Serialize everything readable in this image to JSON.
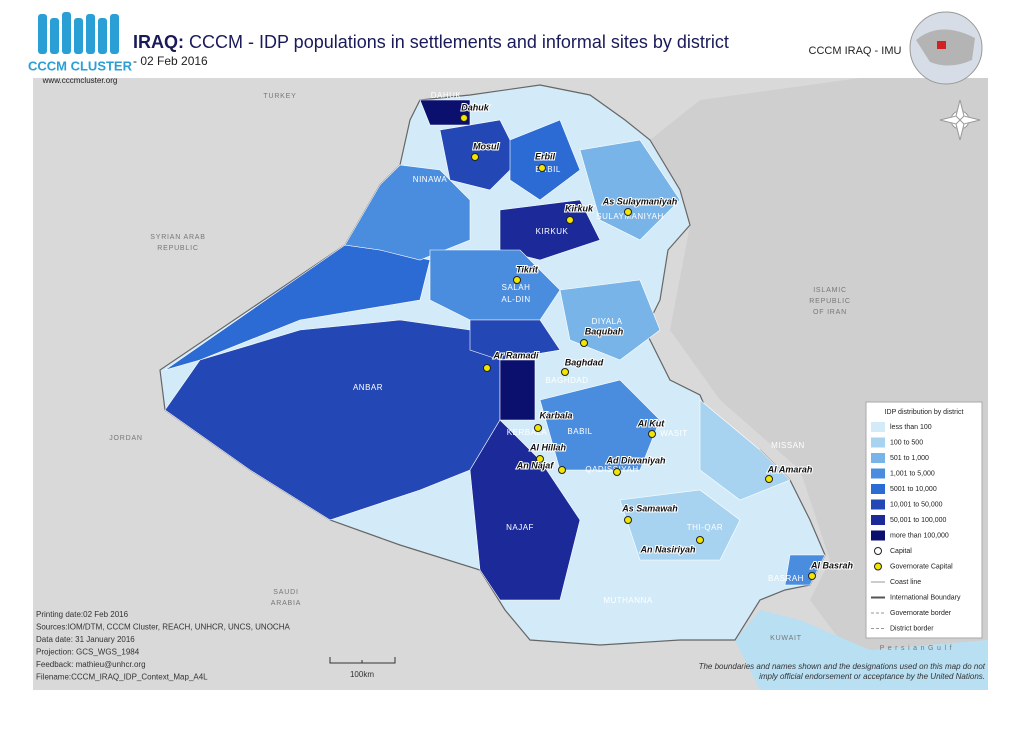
{
  "header": {
    "title_bold": "IRAQ:",
    "title": "CCCM - IDP populations in settlements and informal sites by district",
    "date": "- 02 Feb 2016",
    "org": "CCCM IRAQ - IMU",
    "logo_text": "CCCM CLUSTER",
    "logo_url": "www.cccmcluster.org"
  },
  "map": {
    "countries": [
      [
        "TURKEY"
      ],
      [
        "SYRIAN ARAB",
        "REPUBLIC"
      ],
      [
        "ISLAMIC",
        "REPUBLIC",
        "OF IRAN"
      ],
      [
        "JORDAN"
      ],
      [
        "SAUDI",
        "ARABIA"
      ],
      [
        "KUWAIT"
      ],
      [
        "P e r s i a n   G u l f"
      ]
    ],
    "governorates": [
      "DAHUK",
      "NINAWA",
      "ERBIL",
      "SULAYMANIYAH",
      "KIRKUK",
      "SALAH",
      "AL-DIN",
      "DIYALA",
      "BAGHDAD",
      "ANBAR",
      "KERBALA",
      "BABIL",
      "WASIT",
      "QADISSIYAH",
      "MISSAN",
      "NAJAF",
      "THI-QAR",
      "MUTHANNA",
      "BASRAH"
    ],
    "cities": [
      "Dahuk",
      "Mosul",
      "Erbil",
      "As Sulaymaniyah",
      "Kirkuk",
      "Tikrit",
      "Baqubah",
      "Ar Ramadi",
      "Baghdad",
      "Karbala",
      "Al Hillah",
      "An Najaf",
      "Ad Diwaniyah",
      "Al Kut",
      "Al Amarah",
      "As Samawah",
      "An Nasiriyah",
      "Al Basrah"
    ]
  },
  "legend": {
    "title": "IDP distribution by district",
    "classes": [
      {
        "label": "less than 100",
        "color": "#d3ebf8"
      },
      {
        "label": "100 to 500",
        "color": "#a8d3f0"
      },
      {
        "label": "501 to 1,000",
        "color": "#78b4e8"
      },
      {
        "label": "1,001 to 5,000",
        "color": "#4a8ddf"
      },
      {
        "label": "5001 to 10,000",
        "color": "#2d6bd4"
      },
      {
        "label": "10,001 to 50,000",
        "color": "#2447b6"
      },
      {
        "label": "50,001 to 100,000",
        "color": "#1b2a98"
      },
      {
        "label": "more than 100,000",
        "color": "#0b0f6e"
      }
    ],
    "symbols": [
      "Capital",
      "Governorate Capital",
      "Coast line",
      "International Boundary",
      "Governorate border",
      "District border"
    ]
  },
  "footer": {
    "lines": [
      "Printing date:02 Feb 2016",
      "Sources:IOM/DTM, CCCM Cluster, REACH, UNHCR, UNCS, UNOCHA",
      "Data date: 31 January 2016",
      "Projection: GCS_WGS_1984",
      "Feedback: mathieu@unhcr.org",
      "Filename:CCCM_IRAQ_IDP_Context_Map_A4L"
    ],
    "scale": "100km",
    "disclaimer": [
      "The boundaries and names shown and the designations used on this map do not",
      "imply official endorsement or acceptance by the United Nations."
    ]
  }
}
